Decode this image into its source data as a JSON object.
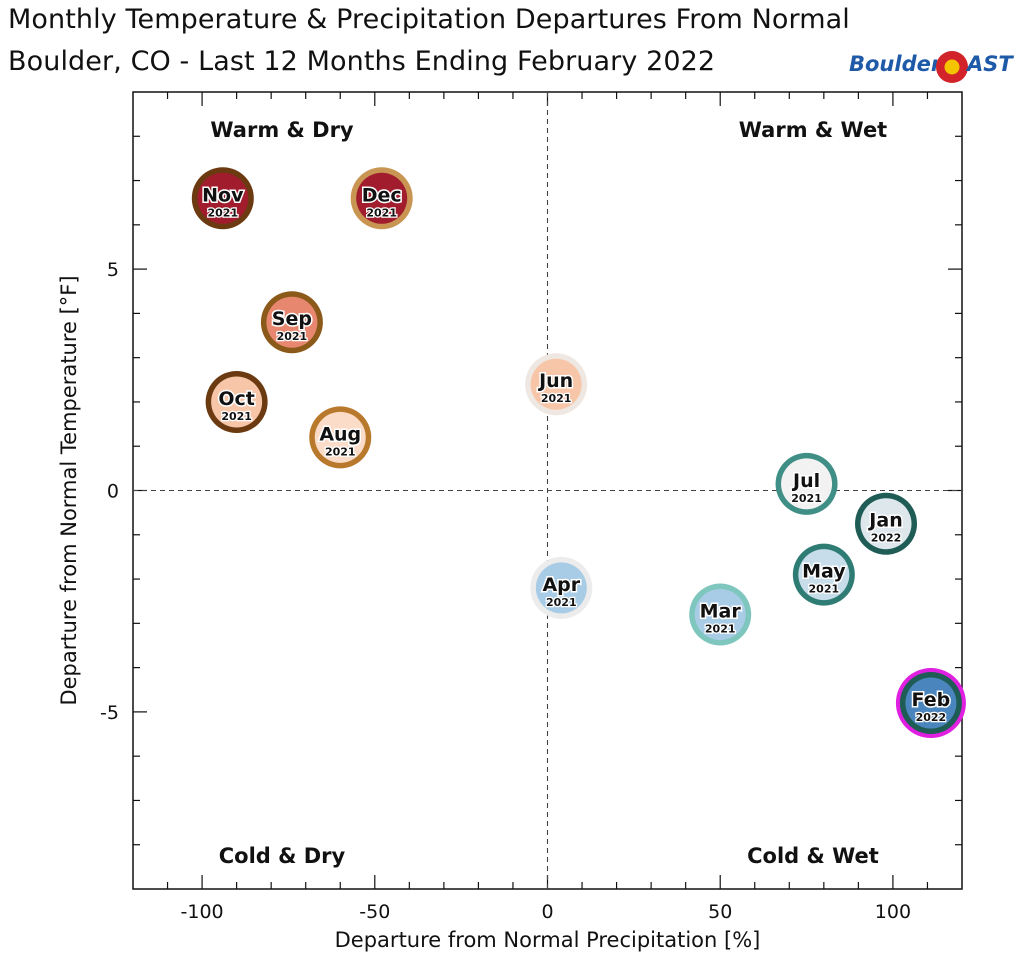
{
  "header": {
    "title_line1": "Monthly Temperature & Precipitation Departures From Normal",
    "title_line2": "Boulder, CO - Last 12 Months Ending February 2022"
  },
  "logo": {
    "left_text": "Boulder",
    "right_text": "AST",
    "brand_blue": "#1e5aa8",
    "flag_red": "#d2232a",
    "flag_yellow": "#f5c400"
  },
  "chart_data": {
    "type": "scatter",
    "xlabel": "Departure from Normal Precipitation [%]",
    "ylabel": "Departure from Normal Temperature [°F]",
    "xlim": [
      -120,
      120
    ],
    "ylim": [
      -9,
      9
    ],
    "x_ticks": [
      -100,
      -50,
      0,
      50,
      100
    ],
    "x_tick_labels": [
      "-100",
      "-50",
      "0",
      "50",
      "100"
    ],
    "y_ticks": [
      -5,
      0,
      5
    ],
    "y_tick_labels": [
      "-5",
      "0",
      "5"
    ],
    "grid": false,
    "reference_lines": {
      "x": 0,
      "y": 0,
      "style": "dashed"
    },
    "quadrant_labels": {
      "top_left": "Warm & Dry",
      "top_right": "Warm & Wet",
      "bottom_left": "Cold & Dry",
      "bottom_right": "Cold & Wet"
    },
    "points": [
      {
        "month": "Nov",
        "year": "2021",
        "x": -94,
        "y": 6.6,
        "fill": "#a11d2e",
        "ring": "#6b3a10",
        "highlight": false
      },
      {
        "month": "Dec",
        "year": "2021",
        "x": -48,
        "y": 6.6,
        "fill": "#a11d2e",
        "ring": "#c99553",
        "highlight": false
      },
      {
        "month": "Sep",
        "year": "2021",
        "x": -74,
        "y": 3.8,
        "fill": "#e8876f",
        "ring": "#8b5a1a",
        "highlight": false
      },
      {
        "month": "Oct",
        "year": "2021",
        "x": -90,
        "y": 2.0,
        "fill": "#f7c5a8",
        "ring": "#6b3a10",
        "highlight": false
      },
      {
        "month": "Aug",
        "year": "2021",
        "x": -60,
        "y": 1.2,
        "fill": "#fbdcc8",
        "ring": "#b8792c",
        "highlight": false
      },
      {
        "month": "Jun",
        "year": "2021",
        "x": 2.5,
        "y": 2.4,
        "fill": "#f7c5a8",
        "ring": "#efe7e2",
        "highlight": false
      },
      {
        "month": "Apr",
        "year": "2021",
        "x": 4,
        "y": -2.2,
        "fill": "#a9cce6",
        "ring": "#ececec",
        "highlight": false
      },
      {
        "month": "Jul",
        "year": "2021",
        "x": 75,
        "y": 0.15,
        "fill": "#f2f2f2",
        "ring": "#3f8f87",
        "highlight": false
      },
      {
        "month": "Jan",
        "year": "2022",
        "x": 98,
        "y": -0.75,
        "fill": "#dde7ec",
        "ring": "#1f5c55",
        "highlight": false
      },
      {
        "month": "May",
        "year": "2021",
        "x": 80,
        "y": -1.9,
        "fill": "#c7dde9",
        "ring": "#2f7c74",
        "highlight": false
      },
      {
        "month": "Mar",
        "year": "2021",
        "x": 50,
        "y": -2.8,
        "fill": "#a9cce6",
        "ring": "#7fc6be",
        "highlight": false
      },
      {
        "month": "Feb",
        "year": "2022",
        "x": 111,
        "y": -4.8,
        "fill": "#4a86bd",
        "ring": "#1f5c55",
        "highlight": true,
        "highlight_color": "#e020e0"
      }
    ]
  }
}
